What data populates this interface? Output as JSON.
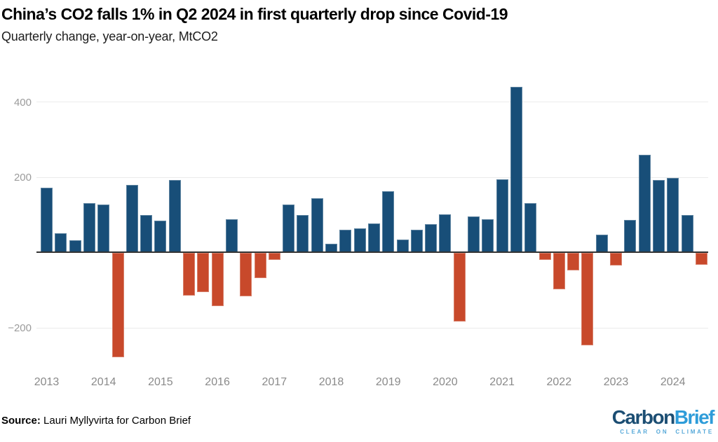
{
  "header": {
    "title": "China’s CO2 falls 1% in Q2 2024 in first quarterly drop since Covid-19",
    "subtitle": "Quarterly change, year-on-year, MtCO2"
  },
  "footer": {
    "source_label": "Source:",
    "source_text": " Lauri Myllyvirta for Carbon Brief",
    "logo": {
      "part1": "Carbon",
      "part2": "Brief",
      "tagline": "CLEAR ON CLIMATE"
    }
  },
  "chart_data": {
    "type": "bar",
    "title": "China’s CO2 falls 1% in Q2 2024 in first quarterly drop since Covid-19",
    "subtitle": "Quarterly change, year-on-year, MtCO2",
    "ylabel": "MtCO2, change year-on-year",
    "xlabel": "",
    "unit": "MtCO2",
    "grid": true,
    "legend_position": "none",
    "ylim": [
      -300,
      485
    ],
    "yticks": [
      400,
      200,
      -200
    ],
    "colors": {
      "positive": "#184e78",
      "negative": "#c8492b",
      "zero_axis": "#333333",
      "gridline": "#ebebeb",
      "tick_text": "#9b9b9b",
      "year_text": "#8a8a8a",
      "logo_dark_blue": "#1c4e73",
      "logo_light_blue": "#2e9cd9"
    },
    "year_labels": [
      "2013",
      "2014",
      "2015",
      "2016",
      "2017",
      "2018",
      "2019",
      "2020",
      "2021",
      "2022",
      "2023",
      "2024"
    ],
    "points": [
      {
        "label": "2012 Q4",
        "value": 172
      },
      {
        "label": "2013 Q1",
        "value": 52
      },
      {
        "label": "2013 Q2",
        "value": 33
      },
      {
        "label": "2013 Q3",
        "value": 132
      },
      {
        "label": "2013 Q4",
        "value": 128
      },
      {
        "label": "2014 Q1",
        "value": -279
      },
      {
        "label": "2014 Q2",
        "value": 180
      },
      {
        "label": "2014 Q3",
        "value": 99
      },
      {
        "label": "2014 Q4",
        "value": 84
      },
      {
        "label": "2015 Q1",
        "value": 192
      },
      {
        "label": "2015 Q2",
        "value": -115
      },
      {
        "label": "2015 Q3",
        "value": -106
      },
      {
        "label": "2015 Q4",
        "value": -143
      },
      {
        "label": "2016 Q1",
        "value": 89
      },
      {
        "label": "2016 Q2",
        "value": -117
      },
      {
        "label": "2016 Q3",
        "value": -67
      },
      {
        "label": "2016 Q4",
        "value": -19
      },
      {
        "label": "2017 Q1",
        "value": 128
      },
      {
        "label": "2017 Q2",
        "value": 99
      },
      {
        "label": "2017 Q3",
        "value": 145
      },
      {
        "label": "2017 Q4",
        "value": 24
      },
      {
        "label": "2018 Q1",
        "value": 60
      },
      {
        "label": "2018 Q2",
        "value": 65
      },
      {
        "label": "2018 Q3",
        "value": 78
      },
      {
        "label": "2018 Q4",
        "value": 162
      },
      {
        "label": "2019 Q1",
        "value": 35
      },
      {
        "label": "2019 Q2",
        "value": 60
      },
      {
        "label": "2019 Q3",
        "value": 76
      },
      {
        "label": "2019 Q4",
        "value": 102
      },
      {
        "label": "2020 Q1",
        "value": -184
      },
      {
        "label": "2020 Q2",
        "value": 95
      },
      {
        "label": "2020 Q3",
        "value": 89
      },
      {
        "label": "2020 Q4",
        "value": 195
      },
      {
        "label": "2021 Q1",
        "value": 440
      },
      {
        "label": "2021 Q2",
        "value": 132
      },
      {
        "label": "2021 Q3",
        "value": -20
      },
      {
        "label": "2021 Q4",
        "value": -97
      },
      {
        "label": "2022 Q1",
        "value": -47
      },
      {
        "label": "2022 Q2",
        "value": -247
      },
      {
        "label": "2022 Q3",
        "value": 48
      },
      {
        "label": "2022 Q4",
        "value": -35
      },
      {
        "label": "2023 Q1",
        "value": 87
      },
      {
        "label": "2023 Q2",
        "value": 259
      },
      {
        "label": "2023 Q3",
        "value": 193
      },
      {
        "label": "2023 Q4",
        "value": 199
      },
      {
        "label": "2024 Q1",
        "value": 100
      },
      {
        "label": "2024 Q2",
        "value": -32
      }
    ]
  }
}
